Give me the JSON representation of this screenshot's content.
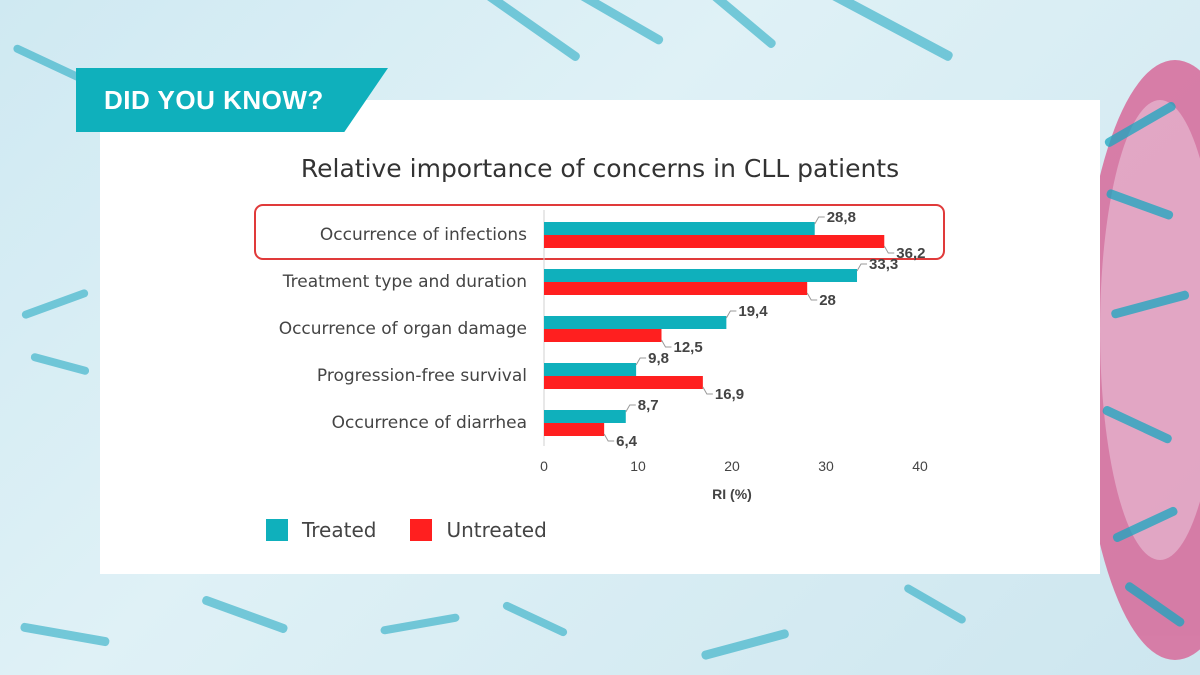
{
  "banner": {
    "text": "DID YOU KNOW?"
  },
  "colors": {
    "treated": "#0fb0bc",
    "untreated": "#ff1f1f",
    "highlight": "#e03a3a",
    "banner": "#0fb0bc"
  },
  "chart_data": {
    "type": "bar",
    "orientation": "horizontal",
    "title": "Relative importance of concerns in CLL patients",
    "xlabel": "RI (%)",
    "ylabel": "",
    "xlim": [
      0,
      40
    ],
    "xticks": [
      0,
      10,
      20,
      30,
      40
    ],
    "categories": [
      "Occurrence of infections",
      "Treatment type and duration",
      "Occurrence of organ damage",
      "Progression-free survival",
      "Occurrence of diarrhea"
    ],
    "series": [
      {
        "name": "Treated",
        "values": [
          28.8,
          33.3,
          19.4,
          9.8,
          8.7
        ],
        "labels": [
          "28,8",
          "33,3",
          "19,4",
          "9,8",
          "8,7"
        ]
      },
      {
        "name": "Untreated",
        "values": [
          36.2,
          28,
          12.5,
          16.9,
          6.4
        ],
        "labels": [
          "36,2",
          "28",
          "12,5",
          "16,9",
          "6,4"
        ]
      }
    ],
    "highlighted_category": "Occurrence of infections",
    "legend_position": "bottom-left",
    "grid": false
  }
}
